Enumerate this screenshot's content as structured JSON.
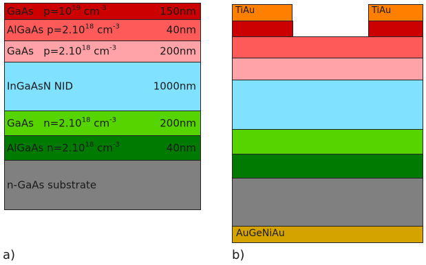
{
  "diagram_a": {
    "panel_label": "a)",
    "layers": [
      {
        "material": "GaAs",
        "doping_prefix": "p=10",
        "doping_exp": "19",
        "unit": "cm",
        "unit_exp": "-3",
        "thickness": "150nm",
        "color": "#cc0000"
      },
      {
        "material": "AlGaAs",
        "doping_prefix": "p=2.10",
        "doping_exp": "18",
        "unit": "cm",
        "unit_exp": "-3",
        "thickness": "40nm",
        "color": "#ff5a5a"
      },
      {
        "material": "GaAs",
        "doping_prefix": "p=2.10",
        "doping_exp": "18",
        "unit": "cm",
        "unit_exp": "-3",
        "thickness": "200nm",
        "color": "#ffa3a8"
      },
      {
        "material": "InGaAsN NID",
        "thickness": "1000nm",
        "color": "#80e2ff"
      },
      {
        "material": "GaAs",
        "doping_prefix": "n=2.10",
        "doping_exp": "18",
        "unit": "cm",
        "unit_exp": "-3",
        "thickness": "200nm",
        "color": "#55d400"
      },
      {
        "material": "AlGaAs",
        "doping_prefix": "n=2.10",
        "doping_exp": "18",
        "unit": "cm",
        "unit_exp": "-3",
        "thickness": "40nm",
        "color": "#007a00"
      },
      {
        "material": "n-GaAs substrate",
        "color": "#808080"
      }
    ]
  },
  "diagram_b": {
    "panel_label": "b)",
    "top_contact_left": "TiAu",
    "top_contact_right": "TiAu",
    "contact_color": "#ff7f00",
    "bottom_contact": "AuGeNiAu",
    "bottom_contact_color": "#d4a300",
    "layer_colors": [
      "#cc0000",
      "#ff5a5a",
      "#ffa3a8",
      "#80e2ff",
      "#55d400",
      "#007a00",
      "#808080"
    ]
  }
}
